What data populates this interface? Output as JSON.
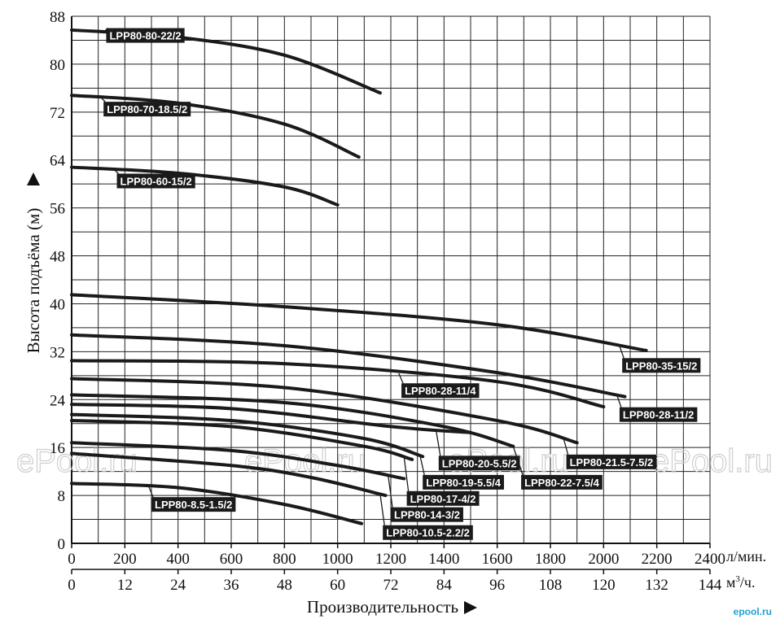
{
  "watermark": "ePool.ru",
  "logo": "epool.ru",
  "chart_data": {
    "type": "line",
    "ylabel": "Высота подъёма (м)",
    "xlabel": "Производительность",
    "x_unit": "л/мин.",
    "x2_unit": "м³/ч.",
    "xlim": [
      0,
      2400
    ],
    "ylim": [
      0,
      88
    ],
    "x_ticks": [
      "0",
      "200",
      "400",
      "600",
      "800",
      "1000",
      "1200",
      "1400",
      "1600",
      "1800",
      "2000",
      "2200",
      "2400"
    ],
    "x2_ticks": [
      "0",
      "12",
      "24",
      "36",
      "48",
      "60",
      "72",
      "84",
      "96",
      "108",
      "120",
      "132",
      "144"
    ],
    "y_ticks": [
      "0",
      "8",
      "16",
      "24",
      "32",
      "40",
      "48",
      "56",
      "64",
      "72",
      "80",
      "88"
    ],
    "grid": true,
    "series": [
      {
        "name": "LPP80-80-22/2",
        "x": [
          0,
          400,
          800,
          1160
        ],
        "y": [
          85.7,
          84.5,
          81.5,
          75.2
        ],
        "label_at": [
          130,
          84.8
        ]
      },
      {
        "name": "LPP80-70-18.5/2",
        "x": [
          0,
          400,
          800,
          1080
        ],
        "y": [
          74.8,
          73.5,
          70.0,
          64.5
        ],
        "label_at": [
          120,
          72.5
        ]
      },
      {
        "name": "LPP80-60-15/2",
        "x": [
          0,
          400,
          800,
          1000
        ],
        "y": [
          62.8,
          61.8,
          59.5,
          56.5
        ],
        "label_at": [
          170,
          60.5
        ]
      },
      {
        "name": "LPP80-35-15/2",
        "x": [
          0,
          800,
          1600,
          2160
        ],
        "y": [
          41.5,
          39.5,
          36.5,
          32.2
        ],
        "label_at": [
          2070,
          29.7
        ]
      },
      {
        "name": "LPP80-28-11/2",
        "x": [
          0,
          800,
          1600,
          2080
        ],
        "y": [
          34.8,
          33.0,
          28.5,
          24.5
        ],
        "label_at": [
          2060,
          21.5
        ]
      },
      {
        "name": "LPP80-28-11/4",
        "x": [
          0,
          800,
          1600,
          2000
        ],
        "y": [
          30.5,
          30.0,
          27.0,
          22.8
        ],
        "label_at": [
          1240,
          25.5
        ]
      },
      {
        "name": "LPP80-21.5-7.5/2",
        "x": [
          0,
          800,
          1600,
          1900
        ],
        "y": [
          27.5,
          26.0,
          20.5,
          16.8
        ],
        "label_at": [
          1860,
          13.6
        ]
      },
      {
        "name": "LPP80-22-7.5/4",
        "x": [
          0,
          800,
          1400,
          1660
        ],
        "y": [
          24.8,
          23.5,
          19.5,
          16.2
        ],
        "label_at": [
          1690,
          10.2
        ]
      },
      {
        "name": "LPP80-20-5.5/2",
        "x": [
          0,
          600,
          1200,
          1500
        ],
        "y": [
          23.2,
          22.5,
          19.5,
          18.5
        ],
        "label_at": [
          1380,
          13.4
        ]
      },
      {
        "name": "LPP80-19-5.5/4",
        "x": [
          0,
          600,
          1100,
          1320
        ],
        "y": [
          21.5,
          20.5,
          17.5,
          14.5
        ],
        "label_at": [
          1320,
          10.2
        ]
      },
      {
        "name": "LPP80-17-4/2",
        "x": [
          0,
          600,
          1100,
          1280
        ],
        "y": [
          20.5,
          19.5,
          16.2,
          14.0
        ],
        "label_at": [
          1260,
          7.5
        ]
      },
      {
        "name": "LPP80-14-3/2",
        "x": [
          0,
          600,
          1000,
          1250
        ],
        "y": [
          16.8,
          15.5,
          13.0,
          10.8
        ],
        "label_at": [
          1200,
          4.8
        ]
      },
      {
        "name": "LPP80-10.5-2.2/2",
        "x": [
          0,
          600,
          900,
          1180
        ],
        "y": [
          15.0,
          13.0,
          11.0,
          8.0
        ],
        "label_at": [
          1170,
          1.8
        ]
      },
      {
        "name": "LPP80-8.5-1.5/2",
        "x": [
          0,
          400,
          800,
          1090
        ],
        "y": [
          10.0,
          9.3,
          6.5,
          3.3
        ],
        "label_at": [
          300,
          6.5
        ]
      }
    ]
  }
}
